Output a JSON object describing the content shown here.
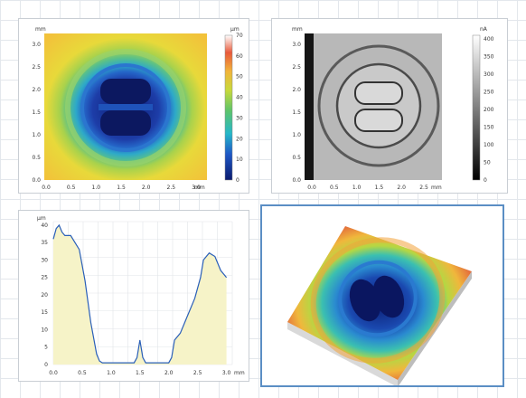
{
  "panels": {
    "height_map": {
      "y_unit": "mm",
      "x_unit": "mm",
      "y_ticks": [
        "0.0",
        "0.5",
        "1.0",
        "1.5",
        "2.0",
        "2.5",
        "3.0"
      ],
      "x_ticks": [
        "0.0",
        "0.5",
        "1.0",
        "1.5",
        "2.0",
        "2.5",
        "3.0"
      ],
      "colorbar_unit": "µm",
      "colorbar_ticks": [
        "0",
        "10",
        "20",
        "30",
        "40",
        "50",
        "60",
        "70"
      ]
    },
    "intensity_map": {
      "y_unit": "mm",
      "x_unit": "mm",
      "y_ticks": [
        "0.0",
        "0.5",
        "1.0",
        "1.5",
        "2.0",
        "2.5",
        "3.0"
      ],
      "x_ticks": [
        "0.0",
        "0.5",
        "1.0",
        "1.5",
        "2.0",
        "2.5"
      ],
      "colorbar_unit": "nA",
      "colorbar_ticks": [
        "0",
        "50",
        "100",
        "150",
        "200",
        "250",
        "300",
        "350",
        "400"
      ]
    },
    "profile": {
      "y_unit": "µm",
      "x_unit": "mm",
      "y_ticks": [
        "0",
        "5",
        "10",
        "15",
        "20",
        "25",
        "30",
        "35",
        "40"
      ],
      "x_ticks": [
        "0.0",
        "0.5",
        "1.0",
        "1.5",
        "2.0",
        "2.5",
        "3.0"
      ]
    },
    "view3d": {}
  },
  "chart_data": [
    {
      "type": "heatmap",
      "title": "",
      "xlabel": "mm",
      "ylabel": "mm",
      "xlim": [
        0,
        3.1
      ],
      "ylim": [
        0,
        3.2
      ],
      "colorbar": {
        "label": "µm",
        "range": [
          0,
          70
        ]
      }
    },
    {
      "type": "heatmap",
      "title": "",
      "xlabel": "mm",
      "ylabel": "mm",
      "xlim": [
        0,
        2.8
      ],
      "ylim": [
        0,
        3.2
      ],
      "colorbar": {
        "label": "nA",
        "range": [
          0,
          420
        ]
      }
    },
    {
      "type": "area",
      "title": "",
      "xlabel": "mm",
      "ylabel": "µm",
      "xlim": [
        0,
        3.1
      ],
      "ylim": [
        0,
        41
      ],
      "grid": true,
      "series": [
        {
          "x": [
            0.0,
            0.05,
            0.1,
            0.15,
            0.2,
            0.3,
            0.45,
            0.55,
            0.65,
            0.75,
            0.8,
            0.85,
            0.9,
            1.0,
            1.2,
            1.4,
            1.45,
            1.5,
            1.55,
            1.6,
            1.8,
            2.0,
            2.05,
            2.1,
            2.2,
            2.3,
            2.45,
            2.55,
            2.6,
            2.7,
            2.8,
            2.9,
            3.0
          ],
          "y": [
            36,
            39,
            40,
            38,
            37,
            37,
            33,
            24,
            12,
            3,
            1,
            0.5,
            0.5,
            0.5,
            0.5,
            0.5,
            2,
            7,
            2,
            0.5,
            0.5,
            0.5,
            2,
            7,
            9,
            13,
            19,
            25,
            30,
            32,
            31,
            27,
            25
          ]
        }
      ]
    }
  ]
}
